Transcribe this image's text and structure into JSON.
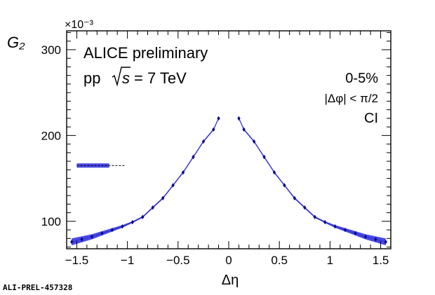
{
  "chart_data": {
    "type": "scatter",
    "xlabel": "Δη",
    "ylabel": "G₂",
    "y_multiplier": "×10⁻³",
    "xlim": [
      -1.6,
      1.6
    ],
    "ylim": [
      68,
      322
    ],
    "x_ticks": [
      -1.5,
      -1,
      -0.5,
      0,
      0.5,
      1,
      1.5
    ],
    "x_tick_labels": [
      "−1.5",
      "−1",
      "−0.5",
      "0",
      "0.5",
      "1",
      "1.5"
    ],
    "y_ticks": [
      100,
      200,
      300
    ],
    "y_tick_labels": [
      "100",
      "200",
      "300"
    ],
    "series": [
      {
        "color": "#0a0a8c",
        "band_color": "#4a4ae8",
        "line_color": "#3333cc",
        "x": [
          -1.55,
          -1.45,
          -1.35,
          -1.25,
          -1.15,
          -1.05,
          -0.95,
          -0.85,
          -0.75,
          -0.65,
          -0.55,
          -0.45,
          -0.35,
          -0.25,
          -0.15,
          -0.1,
          0.1,
          0.15,
          0.25,
          0.35,
          0.45,
          0.55,
          0.65,
          0.75,
          0.85,
          0.95,
          1.05,
          1.15,
          1.25,
          1.35,
          1.45,
          1.55
        ],
        "y": [
          76,
          79,
          82,
          86,
          90,
          94,
          99,
          105,
          116,
          127,
          142,
          157,
          175,
          193,
          207,
          220,
          220,
          207,
          193,
          175,
          157,
          142,
          127,
          116,
          105,
          99,
          94,
          90,
          86,
          82,
          79,
          76
        ],
        "band_half_width": [
          4,
          3.5,
          3,
          2.5,
          2,
          1.5,
          1,
          1,
          1,
          1,
          1,
          1,
          1,
          1,
          1,
          1,
          1,
          1,
          1,
          1,
          1,
          1,
          1,
          1,
          1,
          1,
          1.5,
          2,
          2.5,
          3,
          3.5,
          4
        ]
      }
    ],
    "reference_level": {
      "y": 165,
      "box_x": [
        -1.5,
        -1.18
      ],
      "dash_x": [
        -1.18,
        -1.03
      ],
      "half_height": 2.5
    }
  },
  "annotations": {
    "experiment": "ALICE preliminary",
    "system_prefix": "pp",
    "energy": "= 7 TeV",
    "sqrt_s": "s",
    "centrality": "0-5%",
    "dphi_cut": "|Δφ| < π/2",
    "charge_combination": "CI"
  },
  "footer": {
    "id": "ALI-PREL-457328"
  }
}
